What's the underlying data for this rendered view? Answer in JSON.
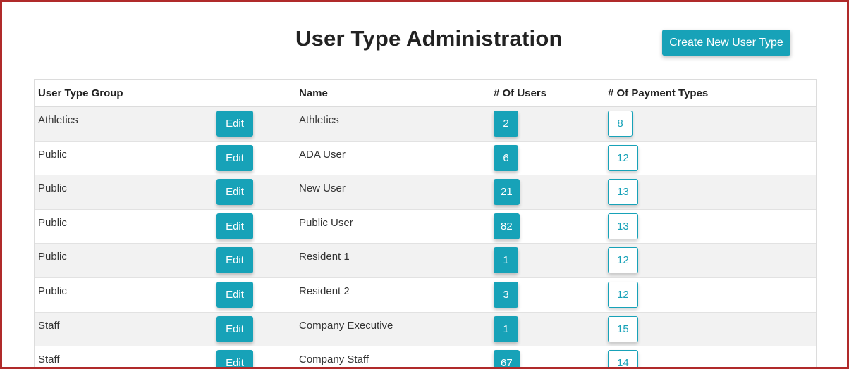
{
  "page": {
    "title": "User Type Administration"
  },
  "toolbar": {
    "create_label": "Create New User Type"
  },
  "table": {
    "headers": {
      "group": "User Type Group",
      "name": "Name",
      "users": "# Of Users",
      "payment_types": "# Of Payment Types"
    },
    "edit_label": "Edit",
    "rows": [
      {
        "group": "Athletics",
        "name": "Athletics",
        "users": "2",
        "payment_types": "8"
      },
      {
        "group": "Public",
        "name": "ADA User",
        "users": "6",
        "payment_types": "12"
      },
      {
        "group": "Public",
        "name": "New User",
        "users": "21",
        "payment_types": "13"
      },
      {
        "group": "Public",
        "name": "Public User",
        "users": "82",
        "payment_types": "13"
      },
      {
        "group": "Public",
        "name": "Resident 1",
        "users": "1",
        "payment_types": "12"
      },
      {
        "group": "Public",
        "name": "Resident 2",
        "users": "3",
        "payment_types": "12"
      },
      {
        "group": "Staff",
        "name": "Company Executive",
        "users": "1",
        "payment_types": "15"
      },
      {
        "group": "Staff",
        "name": "Company Staff",
        "users": "67",
        "payment_types": "14"
      }
    ]
  },
  "colors": {
    "accent": "#17a2b8",
    "frame_border": "#b02a2a",
    "row_stripe": "#f2f2f2"
  }
}
